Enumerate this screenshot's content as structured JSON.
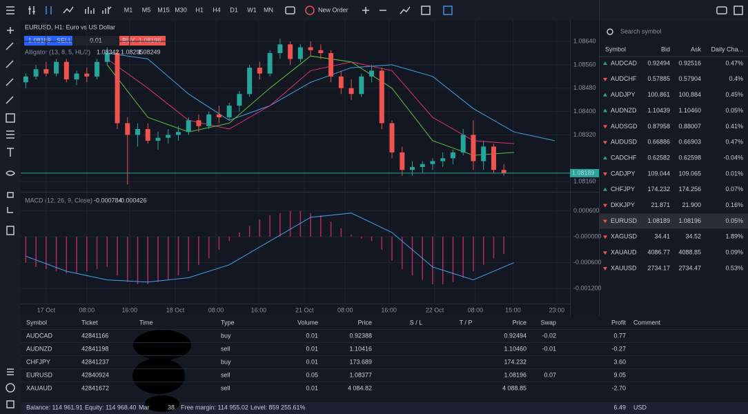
{
  "toolbar": {
    "timeframes": [
      "M1",
      "M5",
      "M15",
      "M30",
      "H1",
      "H4",
      "D1",
      "W1",
      "MN"
    ],
    "active_timeframe": 4,
    "new_order": "New Order"
  },
  "trade_panel": {
    "bid": "1.08189",
    "sell": "SELL",
    "lot": "0.01",
    "buy": "BUY",
    "ask": "1.08196"
  },
  "chart_data": {
    "type": "candlestick",
    "title": "EURUSD, H1: Euro vs US Dollar",
    "up_color": "#26a69a",
    "down_color": "#ef5350",
    "candles": [
      [
        1.085,
        1.0853,
        1.0848,
        1.0852
      ],
      [
        1.0852,
        1.0856,
        1.0851,
        1.08545
      ],
      [
        1.08545,
        1.0857,
        1.0852,
        1.0853
      ],
      [
        1.0853,
        1.0858,
        1.0852,
        1.0857
      ],
      [
        1.0857,
        1.0858,
        1.085,
        1.0851
      ],
      [
        1.0851,
        1.0854,
        1.0849,
        1.0853
      ],
      [
        1.0853,
        1.0855,
        1.085,
        1.0852
      ],
      [
        1.0852,
        1.0858,
        1.0851,
        1.0857
      ],
      [
        1.0857,
        1.0862,
        1.0856,
        1.086
      ],
      [
        1.086,
        1.0861,
        1.0834,
        1.0836
      ],
      [
        1.0836,
        1.0838,
        1.0815,
        1.0832
      ],
      [
        1.0832,
        1.0836,
        1.0828,
        1.0834
      ],
      [
        1.0834,
        1.0836,
        1.0829,
        1.083
      ],
      [
        1.083,
        1.0833,
        1.0827,
        1.0831
      ],
      [
        1.0831,
        1.0834,
        1.0829,
        1.0832
      ],
      [
        1.0832,
        1.0835,
        1.083,
        1.0833
      ],
      [
        1.0833,
        1.0838,
        1.0832,
        1.0837
      ],
      [
        1.0837,
        1.0839,
        1.0833,
        1.0835
      ],
      [
        1.0835,
        1.084,
        1.0834,
        1.0839
      ],
      [
        1.0839,
        1.0842,
        1.0836,
        1.0838
      ],
      [
        1.0838,
        1.0843,
        1.0837,
        1.0842
      ],
      [
        1.0842,
        1.0847,
        1.084,
        1.0846
      ],
      [
        1.0846,
        1.0856,
        1.0845,
        1.0855
      ],
      [
        1.0855,
        1.0857,
        1.0851,
        1.0853
      ],
      [
        1.0853,
        1.0861,
        1.0852,
        1.086
      ],
      [
        1.086,
        1.0865,
        1.0858,
        1.0863
      ],
      [
        1.0863,
        1.0864,
        1.0856,
        1.0858
      ],
      [
        1.0858,
        1.0863,
        1.0857,
        1.0862
      ],
      [
        1.0862,
        1.0864,
        1.0859,
        1.0861
      ],
      [
        1.0861,
        1.0863,
        1.0858,
        1.086
      ],
      [
        1.086,
        1.0861,
        1.085,
        1.0852
      ],
      [
        1.0852,
        1.0854,
        1.0846,
        1.0848
      ],
      [
        1.0848,
        1.0851,
        1.0844,
        1.0846
      ],
      [
        1.0846,
        1.0853,
        1.0845,
        1.0852
      ],
      [
        1.0852,
        1.0856,
        1.085,
        1.0854
      ],
      [
        1.0854,
        1.0855,
        1.0834,
        1.0836
      ],
      [
        1.0836,
        1.0837,
        1.0824,
        1.0826
      ],
      [
        1.0826,
        1.0828,
        1.0818,
        1.082
      ],
      [
        1.082,
        1.0823,
        1.0818,
        1.0821
      ],
      [
        1.0821,
        1.0823,
        1.0819,
        1.0822
      ],
      [
        1.0822,
        1.0824,
        1.082,
        1.0823
      ],
      [
        1.0823,
        1.0826,
        1.0821,
        1.0824
      ],
      [
        1.0824,
        1.0827,
        1.0822,
        1.0826
      ],
      [
        1.0826,
        1.0834,
        1.0825,
        1.0832
      ],
      [
        1.0832,
        1.0837,
        1.082,
        1.0823
      ],
      [
        1.0823,
        1.083,
        1.082,
        1.0828
      ],
      [
        1.0828,
        1.0829,
        1.0819,
        1.082
      ],
      [
        1.082,
        1.0822,
        1.0818,
        1.08189
      ]
    ],
    "xlim": [
      -0.5,
      53.5
    ],
    "xticks": [
      {
        "value": 2,
        "label": "17 Oct"
      },
      {
        "value": 6,
        "label": "08:00"
      },
      {
        "value": 10.2,
        "label": "16:00"
      },
      {
        "value": 14.7,
        "label": "18 Oct"
      },
      {
        "value": 18.7,
        "label": "08:00"
      },
      {
        "value": 22.9,
        "label": "16:00"
      },
      {
        "value": 27.4,
        "label": "21 Oct"
      },
      {
        "value": 31.4,
        "label": "08:00"
      },
      {
        "value": 35.7,
        "label": "16:00"
      },
      {
        "value": 40.2,
        "label": "22 Oct"
      },
      {
        "value": 44.2,
        "label": "08:00"
      },
      {
        "value": 47.9,
        "label": "15:00"
      },
      {
        "value": 52.2,
        "label": "23:00"
      }
    ],
    "ylim": [
      1.08125,
      1.08711
    ],
    "yticks": [
      {
        "value": 1.0864,
        "label": "1.08640"
      },
      {
        "value": 1.0856,
        "label": "1.08560"
      },
      {
        "value": 1.0848,
        "label": "1.08480"
      },
      {
        "value": 1.084,
        "label": "1.08400"
      },
      {
        "value": 1.0832,
        "label": "1.08320"
      },
      {
        "value": 1.0816,
        "label": "1.08160"
      }
    ],
    "grid": true,
    "current_price": {
      "value": 1.08189,
      "label": "1.08189"
    },
    "current_price_color": "#26a69a",
    "alligator": {
      "name": "Alligator (13, 8, 5, HL/2)",
      "legend_values": [
        "1.08342",
        "1.08295",
        "1.08249"
      ],
      "lines": [
        {
          "color": "#3ea6e0",
          "x": [
            0,
            4,
            8,
            12,
            16,
            20,
            24,
            28,
            32,
            36,
            40,
            44,
            48,
            52
          ],
          "values": [
            null,
            null,
            1.086,
            1.0858,
            1.0846,
            1.0837,
            1.0842,
            1.085,
            1.0855,
            1.0856,
            1.0852,
            1.0841,
            1.0833,
            1.083
          ]
        },
        {
          "color": "#e0307a",
          "x": [
            0,
            4,
            8,
            12,
            16,
            20,
            24,
            28,
            32,
            36,
            40,
            44,
            48,
            52
          ],
          "values": [
            null,
            null,
            1.0858,
            1.0848,
            1.0837,
            1.0834,
            1.0842,
            1.0854,
            1.0857,
            1.0854,
            1.0838,
            1.083,
            1.0829,
            null
          ]
        },
        {
          "color": "#5cbf3c",
          "x": [
            0,
            4,
            8,
            12,
            16,
            20,
            24,
            28,
            32,
            36,
            40,
            44,
            48,
            52
          ],
          "values": [
            null,
            null,
            1.0856,
            1.0838,
            1.0833,
            1.0836,
            1.0848,
            1.0859,
            1.0857,
            1.0848,
            1.083,
            1.0825,
            1.0826,
            null
          ]
        }
      ]
    },
    "macd": {
      "name": "MACD (12, 26, 9, Close)",
      "legend_values": [
        "-0.000784",
        "-0.000426"
      ],
      "ylim": [
        -0.00155,
        0.00101
      ],
      "yticks": [
        {
          "value": 0.0006,
          "label": "0.000600"
        },
        {
          "value": 0,
          "label": "-0.000000"
        },
        {
          "value": -0.0006,
          "label": "-0.000600"
        },
        {
          "value": -0.0012,
          "label": "-0.001200"
        }
      ],
      "histogram_color": "#b4286a",
      "histogram": [
        -0.0006,
        -0.0007,
        -0.00075,
        -0.0008,
        -0.00085,
        -0.00085,
        -0.0008,
        -0.00075,
        -0.0007,
        -0.0009,
        -0.00105,
        -0.0011,
        -0.0011,
        -0.00105,
        -0.001,
        -0.0009,
        -0.0008,
        -0.00065,
        -0.0005,
        -0.0003,
        -0.0001,
        0.0001,
        0.00025,
        0.0004,
        0.0005,
        0.00055,
        0.0006,
        0.0006,
        0.00055,
        0.0005,
        0.00035,
        0.0002,
        5e-05,
        -5e-05,
        -0.0001,
        -0.0003,
        -0.00055,
        -0.00075,
        -0.0009,
        -0.001,
        -0.0011,
        -0.0011,
        -0.00105,
        -0.00095,
        -0.0008,
        -0.00065,
        -0.0005,
        -0.0004
      ],
      "signal": {
        "color": "#3ea6e0",
        "x": [
          0,
          4,
          8,
          12,
          16,
          20,
          24,
          28,
          32,
          36,
          40,
          44,
          48
        ],
        "values": [
          -0.00045,
          -0.0008,
          -0.001,
          -0.00105,
          -0.00095,
          -0.00065,
          -0.0001,
          0.00045,
          0.00055,
          0.0001,
          -0.0007,
          -0.001,
          -0.0006
        ]
      }
    }
  },
  "watchlist": {
    "search": "Search symbol",
    "headers": [
      "Symbol",
      "Bid",
      "Ask",
      "Daily Cha..."
    ],
    "selected_row": 10,
    "rows": [
      {
        "symbol": "AUDCAD",
        "direction": "up",
        "bid": "0.92494",
        "ask": "0.92516",
        "change": "0.47%"
      },
      {
        "symbol": "AUDCHF",
        "direction": "down",
        "bid": "0.57885",
        "ask": "0.57904",
        "change": "0.4%"
      },
      {
        "symbol": "AUDJPY",
        "direction": "up",
        "bid": "100.861",
        "ask": "100.884",
        "change": "0.45%"
      },
      {
        "symbol": "AUDNZD",
        "direction": "up",
        "bid": "1.10439",
        "ask": "1.10460",
        "change": "0.05%"
      },
      {
        "symbol": "AUDSGD",
        "direction": "down",
        "bid": "0.87958",
        "ask": "0.88007",
        "change": "0.41%"
      },
      {
        "symbol": "AUDUSD",
        "direction": "down",
        "bid": "0.66886",
        "ask": "0.66903",
        "change": "0.47%"
      },
      {
        "symbol": "CADCHF",
        "direction": "up",
        "bid": "0.62582",
        "ask": "0.62598",
        "change": "-0.04%"
      },
      {
        "symbol": "CADJPY",
        "direction": "down",
        "bid": "109.044",
        "ask": "109.065",
        "change": "0.01%"
      },
      {
        "symbol": "CHFJPY",
        "direction": "up",
        "bid": "174.232",
        "ask": "174.256",
        "change": "0.07%"
      },
      {
        "symbol": "DKKJPY",
        "direction": "down",
        "bid": "21.871",
        "ask": "21.900",
        "change": "0.16%"
      },
      {
        "symbol": "EURUSD",
        "direction": "down",
        "bid": "1.08189",
        "ask": "1.08196",
        "change": "0.05%"
      },
      {
        "symbol": "XAGUSD",
        "direction": "down",
        "bid": "34.41",
        "ask": "34.52",
        "change": "1.89%"
      },
      {
        "symbol": "XAUAUD",
        "direction": "down",
        "bid": "4086.77",
        "ask": "4088.85",
        "change": "0.09%"
      },
      {
        "symbol": "XAUUSD",
        "direction": "down",
        "bid": "2734.17",
        "ask": "2734.47",
        "change": "0.53%"
      }
    ]
  },
  "positions": {
    "headers": [
      "Symbol",
      "Ticket",
      "Time",
      "Type",
      "Volume",
      "Price",
      "S / L",
      "T / P",
      "Price",
      "Swap",
      "Profit",
      "Comment"
    ],
    "rows": [
      [
        "AUDCAD",
        "42841166",
        null,
        "buy",
        "0.01",
        "0.92388",
        null,
        null,
        "0.92494",
        "-0.02",
        "0.77",
        null
      ],
      [
        "AUDNZD",
        "42841198",
        null,
        "sell",
        "0.01",
        "1.10416",
        null,
        null,
        "1.10460",
        "-0.01",
        "-0.27",
        null
      ],
      [
        "CHFJPY",
        "42841237",
        null,
        "buy",
        "0.01",
        "173.689",
        null,
        null,
        "174.232",
        null,
        "3.60",
        null
      ],
      [
        "EURUSD",
        "42840924",
        null,
        "sell",
        "0.05",
        "1.08377",
        null,
        null,
        "1.08196",
        "0.07",
        "9.05",
        null
      ],
      [
        "XAUAUD",
        "42841672",
        null,
        "sell",
        "0.01",
        "4 084.82",
        null,
        null,
        "4 088.85",
        null,
        "-2.70",
        null
      ]
    ]
  },
  "account": {
    "balance": "Balance: 114 961.91",
    "equity": "Equity: 114 968.40",
    "margin_start": "Mar",
    "margin_end": "38",
    "free_margin": "Free margin: 114 955.02",
    "level": "Level: 859 255.61%",
    "total": "6.49",
    "currency": "USD"
  }
}
